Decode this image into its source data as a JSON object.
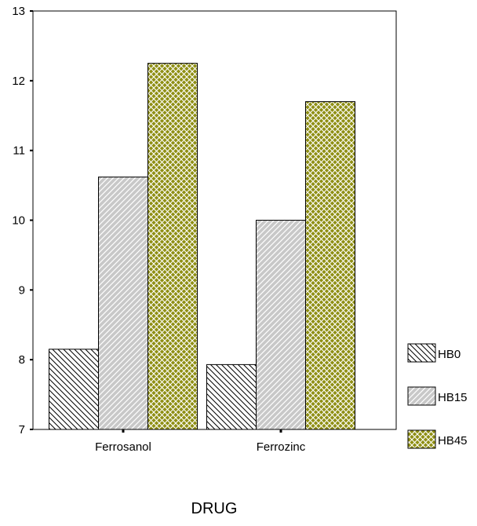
{
  "chart_data": {
    "type": "bar",
    "categories": [
      "Ferrosanol",
      "Ferrozinc"
    ],
    "series": [
      {
        "name": "HB0",
        "values": [
          8.15,
          7.93
        ],
        "pattern": "diagonal-hatch",
        "color": "#ffffff"
      },
      {
        "name": "HB15",
        "values": [
          10.62,
          10.0
        ],
        "pattern": "diagonal-hatch-gray",
        "color": "#c8c8c8"
      },
      {
        "name": "HB45",
        "values": [
          12.25,
          11.7
        ],
        "pattern": "crosshatch",
        "color": "#8f8f14"
      }
    ],
    "xlabel": "DRUG",
    "ylabel": "",
    "ylim": [
      7,
      13
    ],
    "yticks": [
      7,
      8,
      9,
      10,
      11,
      12,
      13
    ],
    "grid": false,
    "legend_position": "right"
  }
}
